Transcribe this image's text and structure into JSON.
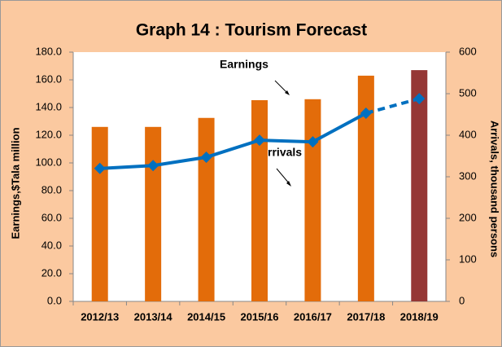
{
  "chart_data": {
    "type": "bar_line",
    "title": "Graph 14 : Tourism Forecast",
    "ylabel": "Earnings,$Tala million",
    "y2label": "Arrivals, thousand persons",
    "categories": [
      "2012/13",
      "2013/14",
      "2014/15",
      "2015/16",
      "2016/17",
      "2017/18",
      "2018/19"
    ],
    "series": [
      {
        "name": "Earnings",
        "type": "bar",
        "colors": [
          "#e36c0a",
          "#e36c0a",
          "#e36c0a",
          "#e36c0a",
          "#e36c0a",
          "#e36c0a",
          "#953735"
        ],
        "values": [
          126,
          126,
          132.5,
          145.3,
          146,
          163,
          167
        ]
      },
      {
        "name": "Arrivals",
        "type": "line",
        "axis": "y2",
        "color": "#0070c0",
        "dashed_from": 5,
        "values": [
          320,
          327,
          347,
          388,
          384,
          453,
          488
        ]
      }
    ],
    "ylim": [
      0,
      180
    ],
    "yticks": [
      {
        "value": 0,
        "label": "0.0"
      },
      {
        "value": 20,
        "label": "20.0"
      },
      {
        "value": 40,
        "label": "40.0"
      },
      {
        "value": 60,
        "label": "60.0"
      },
      {
        "value": 80,
        "label": "80.0"
      },
      {
        "value": 100,
        "label": "100.0"
      },
      {
        "value": 120,
        "label": "120.0"
      },
      {
        "value": 140,
        "label": "140.0"
      },
      {
        "value": 160,
        "label": "160.0"
      },
      {
        "value": 180,
        "label": "180.0"
      }
    ],
    "y2lim": [
      0,
      600
    ],
    "y2ticks": [
      0,
      100,
      200,
      300,
      400,
      500,
      600
    ]
  }
}
